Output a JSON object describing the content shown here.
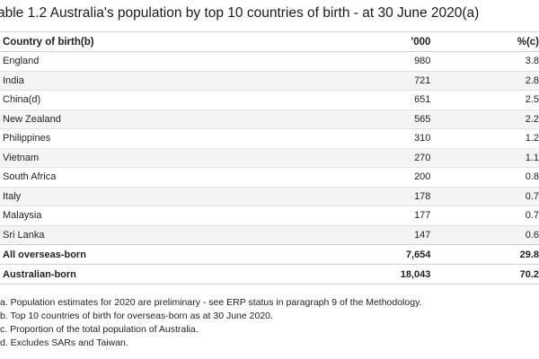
{
  "title": "able 1.2 Australia's population by top 10 countries of birth - at 30 June 2020(a)",
  "headers": [
    "Country of birth(b)",
    "'000",
    "%(c)"
  ],
  "rows": [
    {
      "country": "England",
      "thousands": "980",
      "percent": "3.8"
    },
    {
      "country": "India",
      "thousands": "721",
      "percent": "2.8"
    },
    {
      "country": "China(d)",
      "thousands": "651",
      "percent": "2.5"
    },
    {
      "country": "New Zealand",
      "thousands": "565",
      "percent": "2.2"
    },
    {
      "country": "Philippines",
      "thousands": "310",
      "percent": "1.2"
    },
    {
      "country": "Vietnam",
      "thousands": "270",
      "percent": "1.1"
    },
    {
      "country": "South Africa",
      "thousands": "200",
      "percent": "0.8"
    },
    {
      "country": "Italy",
      "thousands": "178",
      "percent": "0.7"
    },
    {
      "country": "Malaysia",
      "thousands": "177",
      "percent": "0.7"
    },
    {
      "country": "Sri Lanka",
      "thousands": "147",
      "percent": "0.6"
    }
  ],
  "totals": [
    {
      "country": "All overseas-born",
      "thousands": "7,654",
      "percent": "29.8"
    },
    {
      "country": "Australian-born",
      "thousands": "18,043",
      "percent": "70.2"
    }
  ],
  "notes": [
    "a. Population estimates for 2020 are preliminary - see ERP status in paragraph 9 of the Methodology.",
    "b. Top 10 countries of birth for overseas-born as at 30 June 2020.",
    "c. Proportion of the total population of Australia.",
    "d. Excludes SARs and Taiwan."
  ]
}
